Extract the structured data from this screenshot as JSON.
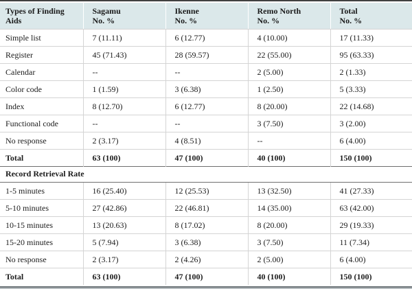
{
  "table": {
    "header": {
      "col0": "Types of Finding Aids",
      "columns": [
        {
          "name": "Sagamu",
          "sub": "No. %"
        },
        {
          "name": "Ikenne",
          "sub": "No. %"
        },
        {
          "name": "Remo North",
          "sub": "No. %"
        },
        {
          "name": "Total",
          "sub": "No. %"
        }
      ]
    },
    "sections": [
      {
        "rows": [
          {
            "label": "Simple list",
            "cells": [
              "7 (11.11)",
              "6 (12.77)",
              "4 (10.00)",
              "17 (11.33)"
            ]
          },
          {
            "label": "Register",
            "cells": [
              "45 (71.43)",
              "28 (59.57)",
              "22 (55.00)",
              "95 (63.33)"
            ]
          },
          {
            "label": "Calendar",
            "cells": [
              "--",
              "--",
              "2 (5.00)",
              "2 (1.33)"
            ]
          },
          {
            "label": "Color code",
            "cells": [
              "1 (1.59)",
              "3 (6.38)",
              "1 (2.50)",
              "5 (3.33)"
            ]
          },
          {
            "label": "Index",
            "cells": [
              "8 (12.70)",
              "6 (12.77)",
              "8 (20.00)",
              "22 (14.68)"
            ]
          },
          {
            "label": "Functional code",
            "cells": [
              "--",
              "--",
              "3 (7.50)",
              "3 (2.00)"
            ]
          },
          {
            "label": "No response",
            "cells": [
              "2 (3.17)",
              "4 (8.51)",
              "--",
              "6 (4.00)"
            ]
          },
          {
            "label": "Total",
            "cells": [
              "63 (100)",
              "47 (100)",
              "40 (100)",
              "150 (100)"
            ]
          }
        ]
      },
      {
        "title": "Record Retrieval Rate",
        "rows": [
          {
            "label": "1-5 minutes",
            "cells": [
              "16 (25.40)",
              "12 (25.53)",
              "13 (32.50)",
              "41 (27.33)"
            ]
          },
          {
            "label": "5-10 minutes",
            "cells": [
              "27 (42.86)",
              "22 (46.81)",
              "14 (35.00)",
              "63 (42.00)"
            ]
          },
          {
            "label": "10-15 minutes",
            "cells": [
              "13 (20.63)",
              "8 (17.02)",
              "8 (20.00)",
              "29 (19.33)"
            ]
          },
          {
            "label": "15-20 minutes",
            "cells": [
              "5 (7.94)",
              "3 (6.38)",
              "3 (7.50)",
              "11 (7.34)"
            ]
          },
          {
            "label": "No response",
            "cells": [
              "2 (3.17)",
              "2 (4.26)",
              "2 (5.00)",
              "6 (4.00)"
            ]
          },
          {
            "label": "Total",
            "cells": [
              "63 (100)",
              "47 (100)",
              "40 (100)",
              "150 (100)"
            ]
          }
        ]
      }
    ]
  },
  "colors": {
    "header-bg": "#dbe8ea",
    "top-rule": "#414141",
    "section-rule": "#6e6e6e",
    "grid-line": "#d4d4d4",
    "bottom-rule-dark": "#6b7276",
    "bottom-rule-light": "#b9bfc2",
    "text": "#1b1b1b"
  }
}
